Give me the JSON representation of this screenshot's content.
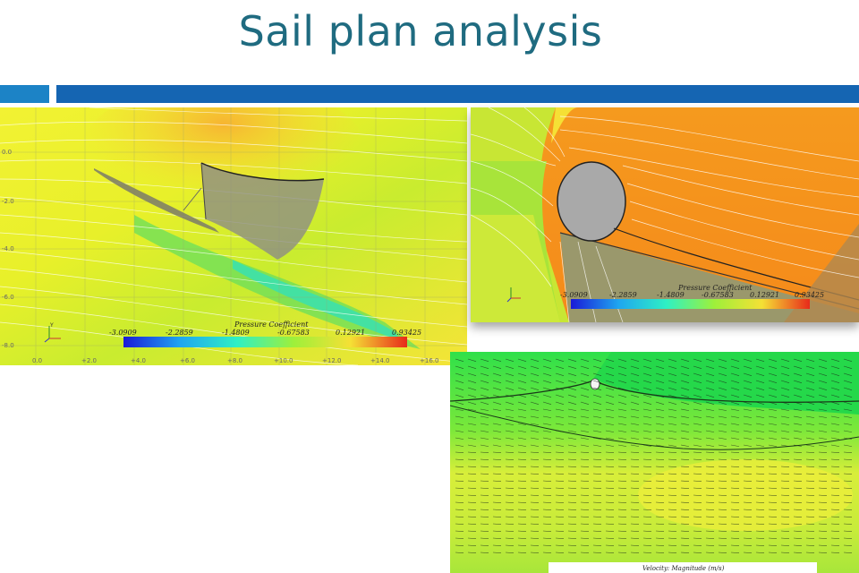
{
  "slide": {
    "title": "Sail plan analysis",
    "accent_color": "#1565b2"
  },
  "panel1": {
    "colorbar": {
      "title": "Pressure Coefficient",
      "ticks": [
        "-3.0909",
        "-2.2859",
        "-1.4809",
        "-0.67583",
        "0.12921",
        "0.93425"
      ]
    },
    "y_ticks": [
      "0.0",
      "-2.0",
      "-4.0",
      "-6.0",
      "-8.0"
    ],
    "x_ticks": [
      "0.0",
      "+2.0",
      "+4.0",
      "+6.0",
      "+8.0",
      "+10.0",
      "+12.0",
      "+14.0",
      "+16.0"
    ]
  },
  "panel2": {
    "colorbar": {
      "title": "Pressure Coefficient",
      "ticks": [
        "-3.0909",
        "-2.2859",
        "-1.4809",
        "-0.67583",
        "0.12921",
        "0.93425"
      ]
    }
  },
  "panel3": {
    "legend_title": "Velocity: Magnitude (m/s)"
  },
  "icons": [
    "axis-triad-icon"
  ]
}
